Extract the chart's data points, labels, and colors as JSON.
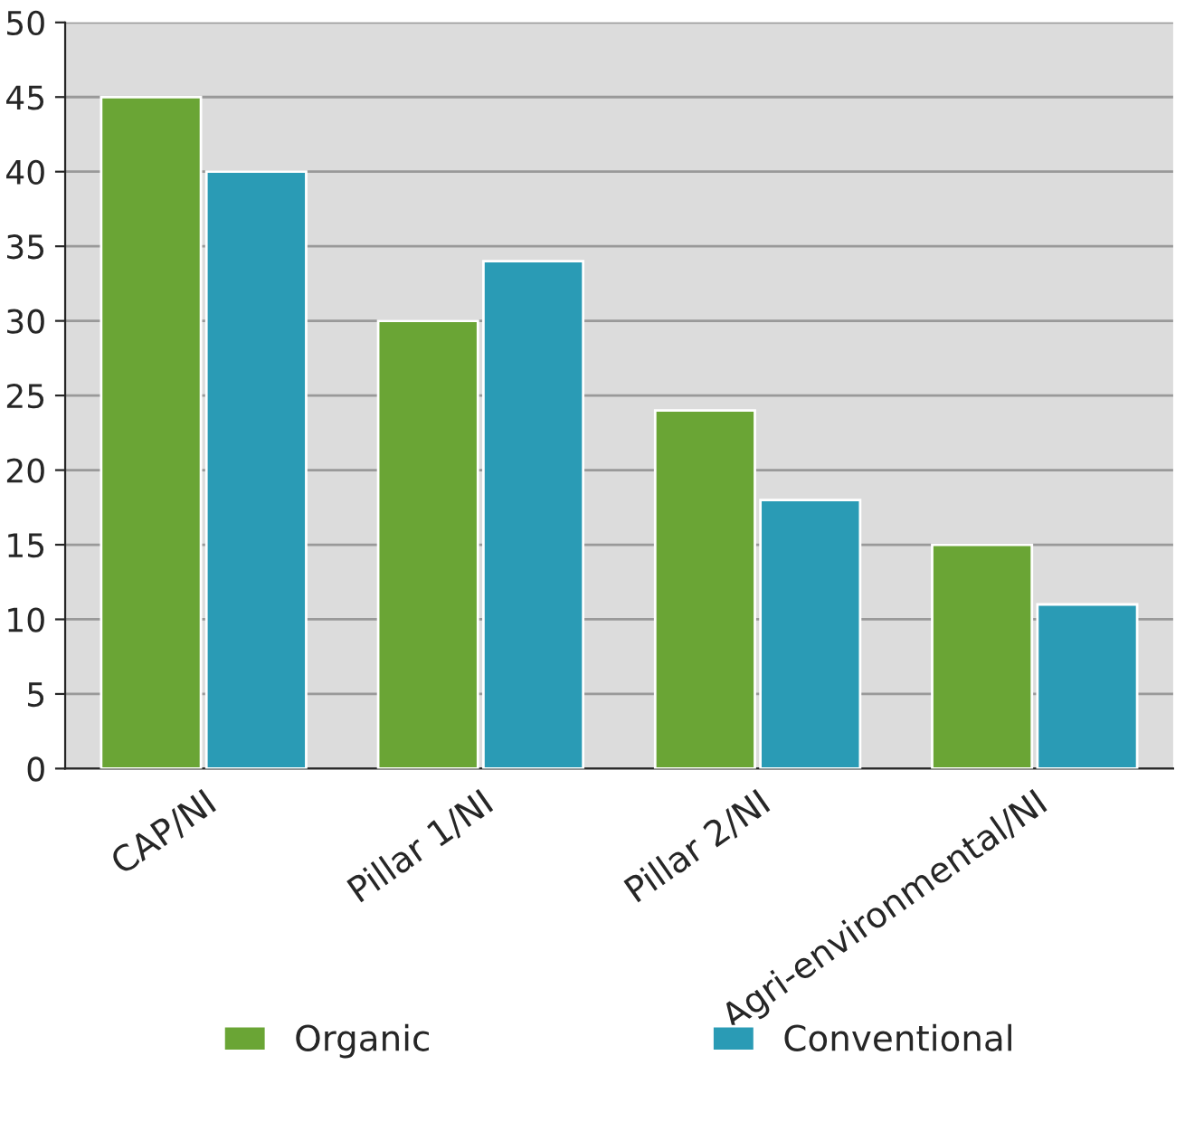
{
  "chart_data": {
    "type": "bar",
    "categories": [
      "CAP/NI",
      "Pillar 1/NI",
      "Pillar 2/NI",
      "Agri-environmental/NI"
    ],
    "series": [
      {
        "name": "Organic",
        "color": "#6aa535",
        "values": [
          45,
          30,
          24,
          15
        ]
      },
      {
        "name": "Conventional",
        "color": "#2a9bb5",
        "values": [
          40,
          34,
          18,
          11
        ]
      }
    ],
    "ylim": [
      0,
      50
    ],
    "yticks": [
      0,
      5,
      10,
      15,
      20,
      25,
      30,
      35,
      40,
      45,
      50
    ],
    "grid": "y",
    "legend": "bottom"
  }
}
